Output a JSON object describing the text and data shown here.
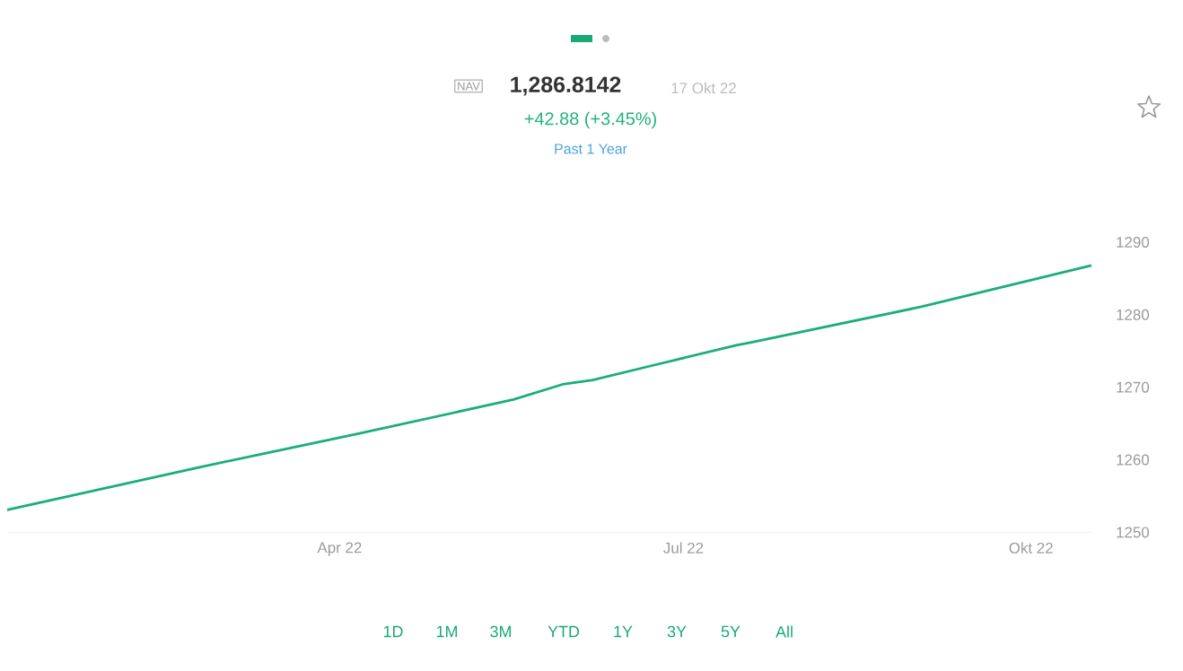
{
  "chart_data": {
    "type": "line",
    "title": "1,286.8142",
    "subtitle": "+42.88 (+3.45%)",
    "annotations": [
      "NAV",
      "17 Okt 22",
      "Past 1 Year",
      "1D",
      "1M",
      "3M",
      "YTD",
      "1Y",
      "3Y",
      "5Y",
      "All"
    ],
    "x": [
      "2022-01-03",
      "2022-02-24",
      "2022-04-06",
      "2022-05-17",
      "2022-05-30",
      "2022-06-07",
      "2022-06-22",
      "2022-07-15",
      "2022-07-19",
      "2022-09-02",
      "2022-10-17"
    ],
    "series": [
      {
        "color": "#1aae78",
        "values": [
          1253.1,
          1259.1,
          1263.6,
          1268.3,
          1270.4,
          1271.0,
          1272.9,
          1275.8,
          1276.2,
          1281.1,
          1286.8
        ]
      }
    ],
    "xticks": [
      {
        "value": "2022-04-01",
        "label": "Apr 22"
      },
      {
        "value": "2022-07-01",
        "label": "Jul 22"
      },
      {
        "value": "2022-10-01",
        "label": "Okt 22"
      }
    ],
    "xlim": [
      "2022-01-03",
      "2022-10-17"
    ],
    "ylim": [
      1250,
      1290
    ],
    "yticks": [
      1250,
      1260,
      1270,
      1280,
      1290
    ],
    "grid": false,
    "marker": "none",
    "line_style": "solid"
  }
}
